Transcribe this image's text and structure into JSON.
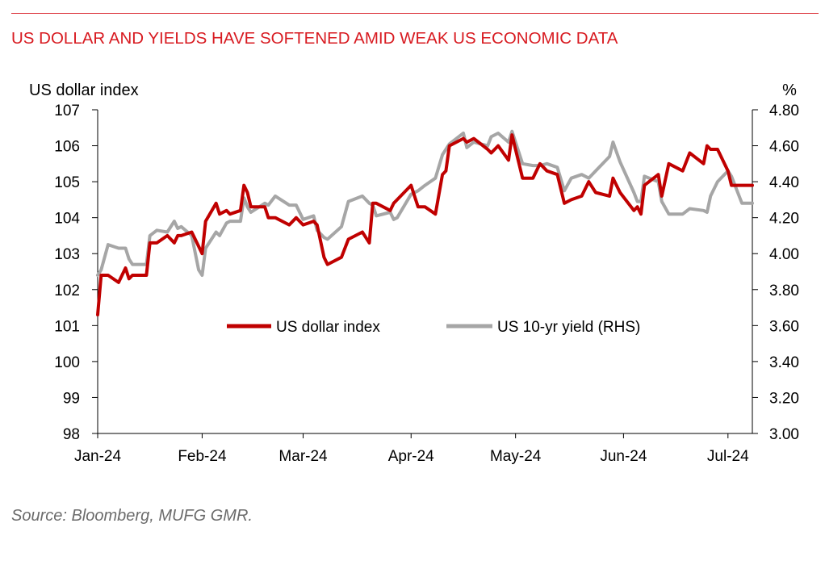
{
  "title": "US DOLLAR AND YIELDS HAVE SOFTENED AMID WEAK US ECONOMIC DATA",
  "source": "Source: Bloomberg, MUFG GMR.",
  "colors": {
    "title": "#d81b21",
    "dxy": "#c00000",
    "yield": "#a6a6a6"
  },
  "chart_data": {
    "type": "line",
    "title": "US DOLLAR AND YIELDS HAVE SOFTENED AMID WEAK US ECONOMIC DATA",
    "ylabel_left": "US dollar index",
    "ylabel_right": "%",
    "ylim_left": [
      98,
      107
    ],
    "ylim_right": [
      3.0,
      4.8
    ],
    "yticks_left": [
      "98",
      "99",
      "100",
      "101",
      "102",
      "103",
      "104",
      "105",
      "106",
      "107"
    ],
    "yticks_right": [
      "3.00",
      "3.20",
      "3.40",
      "3.60",
      "3.80",
      "4.00",
      "4.20",
      "4.40",
      "4.60",
      "4.80"
    ],
    "xlim": [
      "2024-01-02",
      "2024-07-08"
    ],
    "xticks": [
      {
        "date": "2024-01-01",
        "label": "Jan-24"
      },
      {
        "date": "2024-02-01",
        "label": "Feb-24"
      },
      {
        "date": "2024-03-01",
        "label": "Mar-24"
      },
      {
        "date": "2024-04-01",
        "label": "Apr-24"
      },
      {
        "date": "2024-05-01",
        "label": "May-24"
      },
      {
        "date": "2024-06-01",
        "label": "Jun-24"
      },
      {
        "date": "2024-07-01",
        "label": "Jul-24"
      }
    ],
    "legend_position": "center",
    "series": [
      {
        "name": "US dollar index",
        "axis": "left",
        "points": [
          [
            "2024-01-02",
            101.3
          ],
          [
            "2024-01-03",
            102.4
          ],
          [
            "2024-01-05",
            102.4
          ],
          [
            "2024-01-08",
            102.2
          ],
          [
            "2024-01-10",
            102.6
          ],
          [
            "2024-01-11",
            102.3
          ],
          [
            "2024-01-12",
            102.4
          ],
          [
            "2024-01-16",
            102.4
          ],
          [
            "2024-01-17",
            103.3
          ],
          [
            "2024-01-19",
            103.3
          ],
          [
            "2024-01-22",
            103.5
          ],
          [
            "2024-01-24",
            103.3
          ],
          [
            "2024-01-25",
            103.5
          ],
          [
            "2024-01-26",
            103.5
          ],
          [
            "2024-01-29",
            103.6
          ],
          [
            "2024-01-31",
            103.2
          ],
          [
            "2024-02-01",
            103.0
          ],
          [
            "2024-02-02",
            103.9
          ],
          [
            "2024-02-05",
            104.4
          ],
          [
            "2024-02-06",
            104.1
          ],
          [
            "2024-02-08",
            104.2
          ],
          [
            "2024-02-09",
            104.1
          ],
          [
            "2024-02-12",
            104.2
          ],
          [
            "2024-02-13",
            104.9
          ],
          [
            "2024-02-14",
            104.7
          ],
          [
            "2024-02-15",
            104.3
          ],
          [
            "2024-02-19",
            104.3
          ],
          [
            "2024-02-20",
            104.0
          ],
          [
            "2024-02-22",
            104.0
          ],
          [
            "2024-02-26",
            103.8
          ],
          [
            "2024-02-28",
            104.0
          ],
          [
            "2024-03-01",
            103.8
          ],
          [
            "2024-03-04",
            103.9
          ],
          [
            "2024-03-05",
            103.8
          ],
          [
            "2024-03-07",
            102.9
          ],
          [
            "2024-03-08",
            102.7
          ],
          [
            "2024-03-12",
            102.9
          ],
          [
            "2024-03-14",
            103.4
          ],
          [
            "2024-03-18",
            103.6
          ],
          [
            "2024-03-20",
            103.3
          ],
          [
            "2024-03-21",
            104.4
          ],
          [
            "2024-03-22",
            104.4
          ],
          [
            "2024-03-26",
            104.2
          ],
          [
            "2024-03-27",
            104.4
          ],
          [
            "2024-03-28",
            104.5
          ],
          [
            "2024-04-01",
            104.9
          ],
          [
            "2024-04-03",
            104.3
          ],
          [
            "2024-04-05",
            104.3
          ],
          [
            "2024-04-08",
            104.1
          ],
          [
            "2024-04-10",
            105.2
          ],
          [
            "2024-04-11",
            105.3
          ],
          [
            "2024-04-12",
            106.0
          ],
          [
            "2024-04-16",
            106.2
          ],
          [
            "2024-04-17",
            106.1
          ],
          [
            "2024-04-19",
            106.2
          ],
          [
            "2024-04-23",
            105.9
          ],
          [
            "2024-04-24",
            105.8
          ],
          [
            "2024-04-26",
            106.0
          ],
          [
            "2024-04-29",
            105.6
          ],
          [
            "2024-04-30",
            106.3
          ],
          [
            "2024-05-03",
            105.1
          ],
          [
            "2024-05-06",
            105.1
          ],
          [
            "2024-05-08",
            105.5
          ],
          [
            "2024-05-10",
            105.3
          ],
          [
            "2024-05-13",
            105.2
          ],
          [
            "2024-05-15",
            104.4
          ],
          [
            "2024-05-17",
            104.5
          ],
          [
            "2024-05-20",
            104.6
          ],
          [
            "2024-05-22",
            105.0
          ],
          [
            "2024-05-24",
            104.7
          ],
          [
            "2024-05-28",
            104.6
          ],
          [
            "2024-05-29",
            105.1
          ],
          [
            "2024-05-31",
            104.7
          ],
          [
            "2024-06-04",
            104.2
          ],
          [
            "2024-06-05",
            104.3
          ],
          [
            "2024-06-06",
            104.1
          ],
          [
            "2024-06-07",
            104.9
          ],
          [
            "2024-06-11",
            105.2
          ],
          [
            "2024-06-12",
            104.6
          ],
          [
            "2024-06-14",
            105.5
          ],
          [
            "2024-06-18",
            105.3
          ],
          [
            "2024-06-20",
            105.8
          ],
          [
            "2024-06-24",
            105.5
          ],
          [
            "2024-06-25",
            106.0
          ],
          [
            "2024-06-26",
            105.9
          ],
          [
            "2024-06-28",
            105.9
          ],
          [
            "2024-07-01",
            105.3
          ],
          [
            "2024-07-02",
            104.9
          ],
          [
            "2024-07-05",
            104.9
          ],
          [
            "2024-07-08",
            104.9
          ]
        ]
      },
      {
        "name": "US 10-yr yield (RHS)",
        "axis": "right",
        "points": [
          [
            "2024-01-02",
            3.88
          ],
          [
            "2024-01-03",
            3.91
          ],
          [
            "2024-01-05",
            4.05
          ],
          [
            "2024-01-08",
            4.03
          ],
          [
            "2024-01-10",
            4.03
          ],
          [
            "2024-01-11",
            3.97
          ],
          [
            "2024-01-12",
            3.94
          ],
          [
            "2024-01-16",
            3.94
          ],
          [
            "2024-01-17",
            4.1
          ],
          [
            "2024-01-19",
            4.13
          ],
          [
            "2024-01-22",
            4.12
          ],
          [
            "2024-01-24",
            4.18
          ],
          [
            "2024-01-25",
            4.14
          ],
          [
            "2024-01-26",
            4.15
          ],
          [
            "2024-01-29",
            4.1
          ],
          [
            "2024-01-31",
            3.91
          ],
          [
            "2024-02-01",
            3.88
          ],
          [
            "2024-02-02",
            4.03
          ],
          [
            "2024-02-05",
            4.12
          ],
          [
            "2024-02-06",
            4.1
          ],
          [
            "2024-02-08",
            4.17
          ],
          [
            "2024-02-09",
            4.18
          ],
          [
            "2024-02-12",
            4.18
          ],
          [
            "2024-02-13",
            4.31
          ],
          [
            "2024-02-14",
            4.26
          ],
          [
            "2024-02-15",
            4.23
          ],
          [
            "2024-02-19",
            4.28
          ],
          [
            "2024-02-20",
            4.27
          ],
          [
            "2024-02-22",
            4.32
          ],
          [
            "2024-02-26",
            4.27
          ],
          [
            "2024-02-28",
            4.27
          ],
          [
            "2024-03-01",
            4.19
          ],
          [
            "2024-03-04",
            4.21
          ],
          [
            "2024-03-05",
            4.13
          ],
          [
            "2024-03-07",
            4.09
          ],
          [
            "2024-03-08",
            4.08
          ],
          [
            "2024-03-12",
            4.15
          ],
          [
            "2024-03-14",
            4.29
          ],
          [
            "2024-03-18",
            4.32
          ],
          [
            "2024-03-20",
            4.28
          ],
          [
            "2024-03-21",
            4.27
          ],
          [
            "2024-03-22",
            4.21
          ],
          [
            "2024-03-26",
            4.23
          ],
          [
            "2024-03-27",
            4.19
          ],
          [
            "2024-03-28",
            4.2
          ],
          [
            "2024-04-01",
            4.33
          ],
          [
            "2024-04-03",
            4.35
          ],
          [
            "2024-04-05",
            4.38
          ],
          [
            "2024-04-08",
            4.42
          ],
          [
            "2024-04-10",
            4.55
          ],
          [
            "2024-04-11",
            4.58
          ],
          [
            "2024-04-12",
            4.61
          ],
          [
            "2024-04-16",
            4.67
          ],
          [
            "2024-04-17",
            4.59
          ],
          [
            "2024-04-19",
            4.62
          ],
          [
            "2024-04-23",
            4.6
          ],
          [
            "2024-04-24",
            4.65
          ],
          [
            "2024-04-26",
            4.67
          ],
          [
            "2024-04-29",
            4.62
          ],
          [
            "2024-04-30",
            4.68
          ],
          [
            "2024-05-03",
            4.5
          ],
          [
            "2024-05-06",
            4.49
          ],
          [
            "2024-05-08",
            4.49
          ],
          [
            "2024-05-10",
            4.5
          ],
          [
            "2024-05-13",
            4.48
          ],
          [
            "2024-05-15",
            4.35
          ],
          [
            "2024-05-17",
            4.42
          ],
          [
            "2024-05-20",
            4.44
          ],
          [
            "2024-05-22",
            4.42
          ],
          [
            "2024-05-24",
            4.46
          ],
          [
            "2024-05-28",
            4.54
          ],
          [
            "2024-05-29",
            4.62
          ],
          [
            "2024-05-31",
            4.51
          ],
          [
            "2024-06-04",
            4.34
          ],
          [
            "2024-06-05",
            4.29
          ],
          [
            "2024-06-06",
            4.29
          ],
          [
            "2024-06-07",
            4.43
          ],
          [
            "2024-06-11",
            4.4
          ],
          [
            "2024-06-12",
            4.29
          ],
          [
            "2024-06-14",
            4.22
          ],
          [
            "2024-06-18",
            4.22
          ],
          [
            "2024-06-20",
            4.25
          ],
          [
            "2024-06-24",
            4.24
          ],
          [
            "2024-06-25",
            4.23
          ],
          [
            "2024-06-26",
            4.32
          ],
          [
            "2024-06-28",
            4.4
          ],
          [
            "2024-07-01",
            4.46
          ],
          [
            "2024-07-02",
            4.43
          ],
          [
            "2024-07-05",
            4.28
          ],
          [
            "2024-07-08",
            4.28
          ]
        ]
      }
    ]
  }
}
